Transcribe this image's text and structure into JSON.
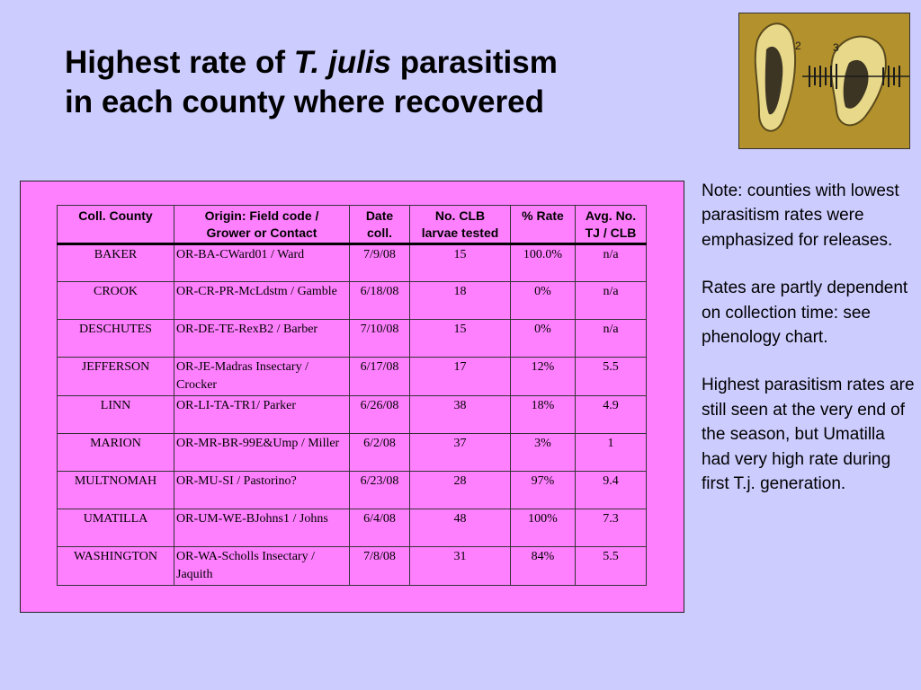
{
  "title": {
    "pre": "Highest rate of ",
    "italic": "T. julis",
    "post": " parasitism",
    "line2": "in each county where recovered"
  },
  "table": {
    "headers": [
      [
        "Coll. County",
        ""
      ],
      [
        "Origin: Field code /",
        "Grower or Contact"
      ],
      [
        "Date",
        "coll."
      ],
      [
        "No. CLB",
        "larvae tested"
      ],
      [
        "% Rate",
        ""
      ],
      [
        "Avg. No.",
        "TJ / CLB"
      ]
    ],
    "rows": [
      {
        "county": "BAKER",
        "origin": "OR-BA-CWard01 / Ward",
        "date": "7/9/08",
        "tested": "15",
        "rate": "100.0%",
        "avg": "n/a"
      },
      {
        "county": "CROOK",
        "origin": "OR-CR-PR-McLdstm / Gamble",
        "date": "6/18/08",
        "tested": "18",
        "rate": "0%",
        "avg": "n/a"
      },
      {
        "county": "DESCHUTES",
        "origin": "OR-DE-TE-RexB2 / Barber",
        "date": "7/10/08",
        "tested": "15",
        "rate": "0%",
        "avg": "n/a"
      },
      {
        "county": "JEFFERSON",
        "origin": "OR-JE-Madras Insectary / Crocker",
        "date": "6/17/08",
        "tested": "17",
        "rate": "12%",
        "avg": "5.5"
      },
      {
        "county": "LINN",
        "origin": "OR-LI-TA-TR1/ Parker",
        "date": "6/26/08",
        "tested": "38",
        "rate": "18%",
        "avg": "4.9"
      },
      {
        "county": "MARION",
        "origin": "OR-MR-BR-99E&Ump / Miller",
        "date": "6/2/08",
        "tested": "37",
        "rate": "3%",
        "avg": "1"
      },
      {
        "county": "MULTNOMAH",
        "origin": "OR-MU-SI / Pastorino?",
        "date": "6/23/08",
        "tested": "28",
        "rate": "97%",
        "avg": "9.4"
      },
      {
        "county": "UMATILLA",
        "origin": "OR-UM-WE-BJohns1 / Johns",
        "date": "6/4/08",
        "tested": "48",
        "rate": "100%",
        "avg": "7.3"
      },
      {
        "county": "WASHINGTON",
        "origin": "OR-WA-Scholls Insectary / Jaquith",
        "date": "7/8/08",
        "tested": "31",
        "rate": "84%",
        "avg": "5.5"
      }
    ]
  },
  "notes": [
    "Note: counties with lowest parasitism rates were emphasized for releases.",
    "Rates are partly dependent on collection time: see phenology chart.",
    "Highest parasitism rates are still seen at the very end of the season, but Umatilla had very high rate during first T.j. generation."
  ],
  "photo": {
    "labels": [
      "2",
      "3"
    ],
    "colors": {
      "background": "#b9992e",
      "specimen": "#e8d88a",
      "dark": "#2a2418"
    }
  },
  "colors": {
    "slide_bg": "#ccccff",
    "panel_bg": "#ff80ff"
  }
}
